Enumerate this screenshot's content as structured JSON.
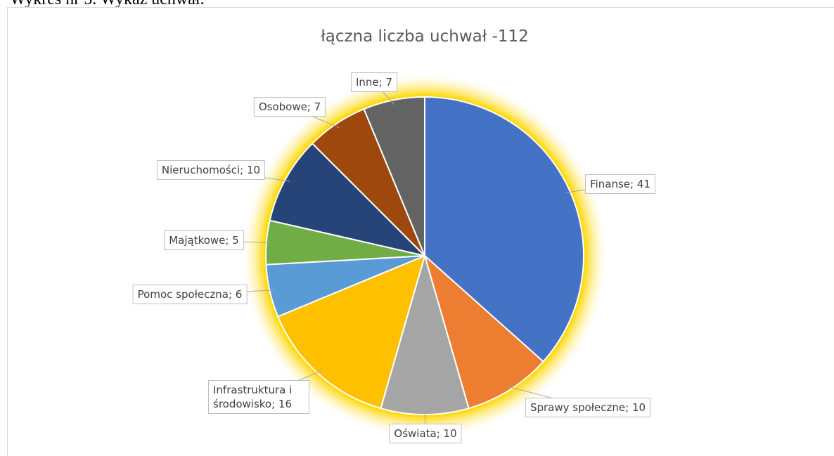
{
  "caption": "Wykres nr 5. Wykaz uchwał.",
  "chart_data": {
    "type": "pie",
    "title": "łączna liczba uchwał -112",
    "values": [
      41,
      10,
      10,
      16,
      6,
      5,
      10,
      7,
      7
    ],
    "value_labels": [
      "Finanse; 41",
      "Sprawy społeczne; 10",
      "Oświata; 10",
      "Infrastruktura i środowisko; 16",
      "Pomoc społeczna; 6",
      "Majątkowe; 5",
      "Nieruchomości; 10",
      "Osobowe; 7",
      "Inne; 7"
    ],
    "colors": [
      "#4472c4",
      "#ed7d31",
      "#a5a5a5",
      "#ffc000",
      "#5b9bd5",
      "#70ad47",
      "#264478",
      "#9e480e",
      "#636363"
    ]
  }
}
